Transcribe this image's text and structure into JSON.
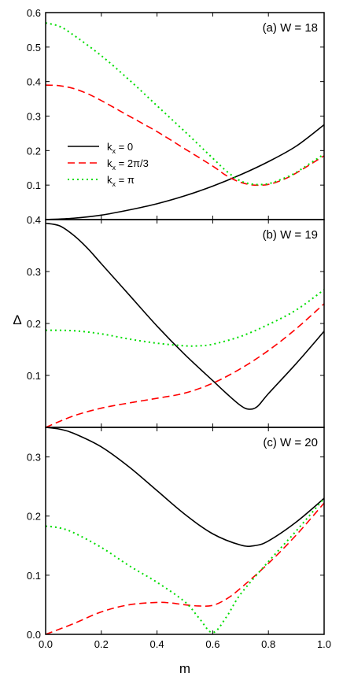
{
  "chart_data": {
    "type": "line",
    "xlabel": "m",
    "ylabel": "Δ",
    "xlim": [
      0,
      1
    ],
    "xticks": [
      "0.0",
      "0.2",
      "0.4",
      "0.6",
      "0.8",
      "1.0"
    ],
    "legend": {
      "placement": "middle-left of panel (a)",
      "entries": [
        {
          "main": "k",
          "sub": "x",
          "rest": " = 0",
          "color": "#000000",
          "dash": "solid"
        },
        {
          "main": "k",
          "sub": "x",
          "rest": " = 2π/3",
          "color": "#ff0000",
          "dash": "dashed"
        },
        {
          "main": "k",
          "sub": "x",
          "rest": " = π",
          "color": "#00dd00",
          "dash": "dotted"
        }
      ]
    },
    "panels": [
      {
        "title": "(a) W = 18",
        "ylim": [
          0,
          0.6
        ],
        "yticks": [
          {
            "v": 0.1,
            "label": "0.1"
          },
          {
            "v": 0.2,
            "label": "0.2"
          },
          {
            "v": 0.3,
            "label": "0.3"
          },
          {
            "v": 0.4,
            "label": "0.4"
          },
          {
            "v": 0.5,
            "label": "0.5"
          },
          {
            "v": 0.6,
            "label": "0.6"
          }
        ],
        "series": [
          {
            "key": "kx0",
            "color": "#000000",
            "dash": "solid",
            "x": [
              0,
              0.1,
              0.2,
              0.3,
              0.4,
              0.5,
              0.6,
              0.7,
              0.8,
              0.9,
              1.0
            ],
            "y": [
              0,
              0.004,
              0.013,
              0.028,
              0.046,
              0.069,
              0.097,
              0.13,
              0.168,
              0.213,
              0.275
            ]
          },
          {
            "key": "kx23",
            "color": "#ff0000",
            "dash": "dashed",
            "x": [
              0,
              0.05,
              0.1,
              0.15,
              0.2,
              0.3,
              0.4,
              0.5,
              0.6,
              0.65,
              0.7,
              0.75,
              0.8,
              0.85,
              0.9,
              1.0
            ],
            "y": [
              0.39,
              0.388,
              0.38,
              0.365,
              0.345,
              0.3,
              0.255,
              0.205,
              0.155,
              0.127,
              0.108,
              0.1,
              0.102,
              0.115,
              0.135,
              0.185
            ]
          },
          {
            "key": "kxpi",
            "color": "#00dd00",
            "dash": "dotted",
            "x": [
              0,
              0.05,
              0.1,
              0.2,
              0.3,
              0.4,
              0.5,
              0.6,
              0.65,
              0.7,
              0.75,
              0.8,
              0.85,
              0.9,
              1.0
            ],
            "y": [
              0.57,
              0.56,
              0.535,
              0.475,
              0.405,
              0.33,
              0.255,
              0.178,
              0.14,
              0.112,
              0.102,
              0.104,
              0.118,
              0.137,
              0.19
            ]
          }
        ]
      },
      {
        "title": "(b) W = 19",
        "ylim": [
          0,
          0.4
        ],
        "yticks": [
          {
            "v": 0.1,
            "label": "0.1"
          },
          {
            "v": 0.2,
            "label": "0.2"
          },
          {
            "v": 0.3,
            "label": "0.3"
          },
          {
            "v": 0.4,
            "label": "0.4"
          }
        ],
        "series": [
          {
            "key": "kx0",
            "color": "#000000",
            "dash": "solid",
            "x": [
              0,
              0.05,
              0.1,
              0.15,
              0.2,
              0.3,
              0.4,
              0.5,
              0.6,
              0.65,
              0.7,
              0.73,
              0.76,
              0.8,
              0.9,
              1.0
            ],
            "y": [
              0.393,
              0.388,
              0.37,
              0.345,
              0.315,
              0.255,
              0.195,
              0.14,
              0.09,
              0.065,
              0.042,
              0.035,
              0.04,
              0.065,
              0.123,
              0.185
            ]
          },
          {
            "key": "kx23",
            "color": "#ff0000",
            "dash": "dashed",
            "x": [
              0,
              0.1,
              0.2,
              0.3,
              0.4,
              0.5,
              0.6,
              0.7,
              0.8,
              0.9,
              1.0
            ],
            "y": [
              0,
              0.022,
              0.037,
              0.047,
              0.056,
              0.066,
              0.085,
              0.113,
              0.148,
              0.19,
              0.238
            ]
          },
          {
            "key": "kxpi",
            "color": "#00dd00",
            "dash": "dotted",
            "x": [
              0,
              0.1,
              0.2,
              0.3,
              0.4,
              0.5,
              0.55,
              0.6,
              0.7,
              0.8,
              0.9,
              1.0
            ],
            "y": [
              0.187,
              0.186,
              0.18,
              0.17,
              0.162,
              0.157,
              0.157,
              0.16,
              0.175,
              0.198,
              0.226,
              0.265
            ]
          }
        ]
      },
      {
        "title": "(c) W = 20",
        "ylim": [
          0,
          0.35
        ],
        "yticks": [
          {
            "v": 0,
            "label": "0.0"
          },
          {
            "v": 0.1,
            "label": "0.1"
          },
          {
            "v": 0.2,
            "label": "0.2"
          },
          {
            "v": 0.3,
            "label": "0.3"
          }
        ],
        "series": [
          {
            "key": "kx0",
            "color": "#000000",
            "dash": "solid",
            "x": [
              0,
              0.05,
              0.1,
              0.2,
              0.3,
              0.4,
              0.5,
              0.6,
              0.7,
              0.75,
              0.8,
              0.9,
              1.0
            ],
            "y": [
              0.35,
              0.347,
              0.34,
              0.317,
              0.283,
              0.243,
              0.203,
              0.17,
              0.151,
              0.15,
              0.158,
              0.19,
              0.23
            ]
          },
          {
            "key": "kx23",
            "color": "#ff0000",
            "dash": "dashed",
            "x": [
              0,
              0.1,
              0.2,
              0.3,
              0.4,
              0.45,
              0.5,
              0.55,
              0.6,
              0.65,
              0.7,
              0.8,
              0.9,
              1.0
            ],
            "y": [
              0,
              0.018,
              0.038,
              0.05,
              0.054,
              0.053,
              0.05,
              0.048,
              0.049,
              0.06,
              0.078,
              0.12,
              0.168,
              0.222
            ]
          },
          {
            "key": "kxpi",
            "color": "#00dd00",
            "dash": "dotted",
            "x": [
              0,
              0.05,
              0.1,
              0.2,
              0.3,
              0.4,
              0.5,
              0.55,
              0.6,
              0.65,
              0.7,
              0.8,
              0.9,
              1.0
            ],
            "y": [
              0.183,
              0.18,
              0.172,
              0.147,
              0.116,
              0.088,
              0.055,
              0.028,
              0.003,
              0.03,
              0.068,
              0.123,
              0.175,
              0.23
            ]
          }
        ]
      }
    ]
  }
}
